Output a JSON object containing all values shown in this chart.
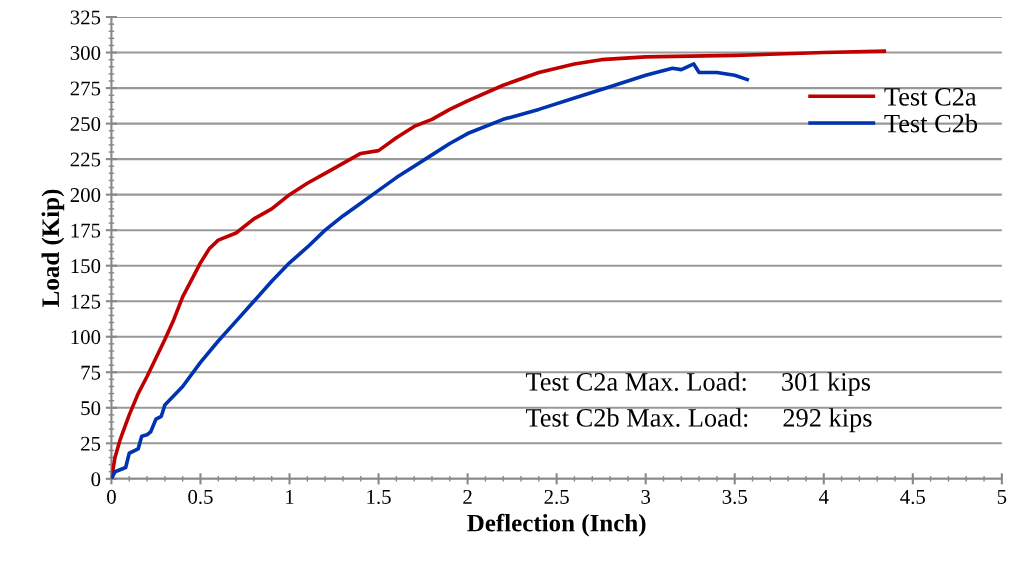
{
  "chart_data": {
    "type": "line",
    "xlabel": "Deflection (Inch)",
    "ylabel": "Load (Kip)",
    "xlim": [
      0,
      5
    ],
    "xticks": [
      0,
      0.5,
      1,
      1.5,
      2,
      2.5,
      3,
      3.5,
      4,
      4.5,
      5
    ],
    "ylim": [
      0,
      325
    ],
    "yticks": [
      0,
      25,
      50,
      75,
      100,
      125,
      150,
      175,
      200,
      225,
      250,
      275,
      300,
      325
    ],
    "grid": "y",
    "legend": "upper right",
    "marker": "none",
    "line_style": "solid",
    "annotations": [
      "Test C2a Max. Load:     301 kips",
      "Test C2b Max. Load:     292 kips"
    ],
    "series": [
      {
        "name": "Test C2a",
        "color": "#c00000",
        "x": [
          0,
          0.02,
          0.05,
          0.1,
          0.15,
          0.2,
          0.25,
          0.3,
          0.35,
          0.4,
          0.45,
          0.5,
          0.55,
          0.6,
          0.7,
          0.8,
          0.9,
          1.0,
          1.1,
          1.2,
          1.3,
          1.4,
          1.5,
          1.6,
          1.7,
          1.8,
          1.9,
          2.0,
          2.2,
          2.4,
          2.6,
          2.75,
          3.0,
          3.5,
          4.0,
          4.34
        ],
        "values": [
          0,
          15,
          28,
          45,
          60,
          72,
          85,
          98,
          112,
          128,
          140,
          152,
          162,
          168,
          173,
          183,
          190,
          200,
          208,
          215,
          222,
          229,
          231,
          240,
          248,
          253,
          260,
          266,
          277,
          286,
          292,
          295,
          297,
          298,
          300,
          301
        ]
      },
      {
        "name": "Test C2b",
        "color": "#0033b0",
        "x": [
          0,
          0.02,
          0.08,
          0.1,
          0.15,
          0.17,
          0.2,
          0.22,
          0.25,
          0.28,
          0.3,
          0.4,
          0.5,
          0.6,
          0.7,
          0.8,
          0.9,
          1.0,
          1.1,
          1.2,
          1.3,
          1.4,
          1.5,
          1.6,
          1.7,
          1.8,
          1.9,
          2.0,
          2.2,
          2.4,
          2.6,
          2.8,
          3.0,
          3.15,
          3.2,
          3.27,
          3.3,
          3.4,
          3.5,
          3.57
        ],
        "values": [
          0,
          5,
          8,
          18,
          21,
          30,
          31,
          33,
          42,
          44,
          52,
          65,
          82,
          97,
          111,
          125,
          139,
          152,
          163,
          175,
          185,
          194,
          203,
          212,
          220,
          228,
          236,
          243,
          253,
          260,
          268,
          276,
          284,
          289,
          288,
          292,
          286,
          286,
          284,
          281
        ]
      }
    ]
  }
}
